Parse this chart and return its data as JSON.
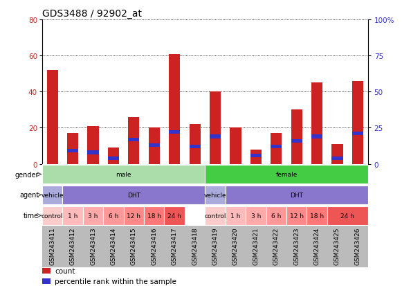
{
  "title": "GDS3488 / 92902_at",
  "samples": [
    "GSM243411",
    "GSM243412",
    "GSM243413",
    "GSM243414",
    "GSM243415",
    "GSM243416",
    "GSM243417",
    "GSM243418",
    "GSM243419",
    "GSM243420",
    "GSM243421",
    "GSM243422",
    "GSM243423",
    "GSM243424",
    "GSM243425",
    "GSM243426"
  ],
  "count_values": [
    52,
    17,
    21,
    9,
    26,
    20,
    61,
    22,
    40,
    20,
    8,
    17,
    30,
    45,
    11,
    46
  ],
  "percentile_values": [
    0,
    9,
    8,
    4,
    17,
    13,
    22,
    12,
    19,
    0,
    6,
    12,
    16,
    19,
    4,
    21
  ],
  "ylim_left": [
    0,
    80
  ],
  "ylim_right": [
    0,
    100
  ],
  "yticks_left": [
    0,
    20,
    40,
    60,
    80
  ],
  "yticks_right": [
    0,
    25,
    50,
    75,
    100
  ],
  "count_color": "#cc2222",
  "percentile_color": "#3333cc",
  "bar_width": 0.55,
  "tick_bg_color": "#bbbbbb",
  "gender_row": {
    "label": "gender",
    "segments": [
      {
        "text": "male",
        "start": 0,
        "end": 7,
        "color": "#aaddaa"
      },
      {
        "text": "female",
        "start": 8,
        "end": 15,
        "color": "#44cc44"
      }
    ]
  },
  "agent_row": {
    "label": "agent",
    "segments": [
      {
        "text": "vehicle",
        "start": 0,
        "end": 0,
        "color": "#aaaadd"
      },
      {
        "text": "DHT",
        "start": 1,
        "end": 7,
        "color": "#8877cc"
      },
      {
        "text": "vehicle",
        "start": 8,
        "end": 8,
        "color": "#aaaadd"
      },
      {
        "text": "DHT",
        "start": 9,
        "end": 15,
        "color": "#8877cc"
      }
    ]
  },
  "time_row": {
    "label": "time",
    "segments": [
      {
        "text": "control",
        "start": 0,
        "end": 0,
        "color": "#ffcccc"
      },
      {
        "text": "1 h",
        "start": 1,
        "end": 1,
        "color": "#ffbbbb"
      },
      {
        "text": "3 h",
        "start": 2,
        "end": 2,
        "color": "#ffaaaa"
      },
      {
        "text": "6 h",
        "start": 3,
        "end": 3,
        "color": "#ff9999"
      },
      {
        "text": "12 h",
        "start": 4,
        "end": 4,
        "color": "#ff8888"
      },
      {
        "text": "18 h",
        "start": 5,
        "end": 5,
        "color": "#ff7777"
      },
      {
        "text": "24 h",
        "start": 6,
        "end": 6,
        "color": "#ee5555"
      },
      {
        "text": "control",
        "start": 8,
        "end": 8,
        "color": "#ffcccc"
      },
      {
        "text": "1 h",
        "start": 9,
        "end": 9,
        "color": "#ffbbbb"
      },
      {
        "text": "3 h",
        "start": 10,
        "end": 10,
        "color": "#ffaaaa"
      },
      {
        "text": "6 h",
        "start": 11,
        "end": 11,
        "color": "#ff9999"
      },
      {
        "text": "12 h",
        "start": 12,
        "end": 12,
        "color": "#ff8888"
      },
      {
        "text": "18 h",
        "start": 13,
        "end": 13,
        "color": "#ff7777"
      },
      {
        "text": "24 h",
        "start": 14,
        "end": 15,
        "color": "#ee5555"
      }
    ]
  },
  "legend_items": [
    {
      "label": "count",
      "color": "#cc2222"
    },
    {
      "label": "percentile rank within the sample",
      "color": "#3333cc"
    }
  ],
  "title_fontsize": 10,
  "tick_fontsize": 6.5,
  "row_label_fontsize": 7,
  "row_text_fontsize": 6.5
}
